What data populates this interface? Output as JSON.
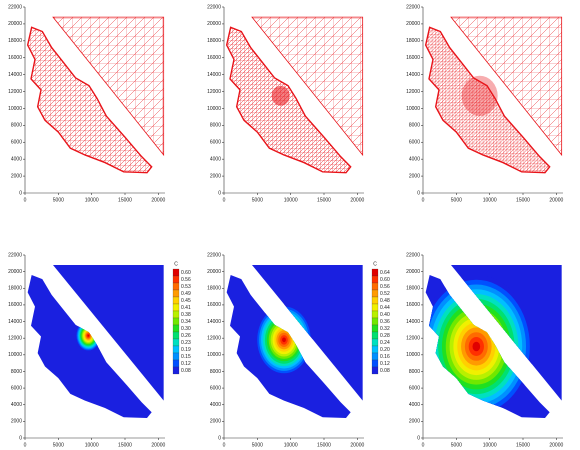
{
  "chart_data": [
    {
      "type": "mesh",
      "color": "#e8141a",
      "xlim": [
        0,
        21000
      ],
      "ylim": [
        0,
        22000
      ],
      "xticks": [
        0,
        5000,
        10000,
        15000,
        20000
      ],
      "yticks": [
        0,
        2000,
        4000,
        6000,
        8000,
        10000,
        12000,
        14000,
        16000,
        18000,
        20000,
        22000
      ]
    },
    {
      "type": "mesh",
      "color": "#e8141a",
      "xlim": [
        0,
        21000
      ],
      "ylim": [
        0,
        22000
      ],
      "xticks": [
        0,
        5000,
        10000,
        15000,
        20000
      ],
      "yticks": [
        0,
        2000,
        4000,
        6000,
        8000,
        10000,
        12000,
        14000,
        16000,
        18000,
        20000,
        22000
      ]
    },
    {
      "type": "mesh",
      "color": "#e8141a",
      "xlim": [
        0,
        21000
      ],
      "ylim": [
        0,
        22000
      ],
      "xticks": [
        0,
        5000,
        10000,
        15000,
        20000
      ],
      "yticks": [
        0,
        2000,
        4000,
        6000,
        8000,
        10000,
        12000,
        14000,
        16000,
        18000,
        20000,
        22000
      ]
    },
    {
      "type": "contour",
      "xlim": [
        0,
        21000
      ],
      "ylim": [
        0,
        22000
      ],
      "xticks": [
        0,
        5000,
        10000,
        15000,
        20000
      ],
      "yticks": [
        0,
        2000,
        4000,
        6000,
        8000,
        10000,
        12000,
        14000,
        16000,
        18000,
        20000,
        22000
      ],
      "colors": [
        "#e00000",
        "#ff3000",
        "#ff6a00",
        "#ff9a00",
        "#ffd000",
        "#f0f000",
        "#b8f000",
        "#70e800",
        "#20e020",
        "#00e070",
        "#00e0c0",
        "#00c0ff",
        "#0090ff",
        "#0050ff",
        "#1a20e0"
      ],
      "colorbar": {
        "title": "C",
        "levels": [
          {
            "value": 0.6,
            "label": "0.60"
          },
          0.56,
          0.53,
          0.49,
          0.45,
          0.41,
          0.38,
          0.34,
          {
            "value": 0.3,
            "label": "0.30"
          },
          0.26,
          0.23,
          0.19,
          0.15,
          0.12,
          0.08
        ]
      }
    },
    {
      "type": "contour",
      "xlim": [
        0,
        21000
      ],
      "ylim": [
        0,
        22000
      ],
      "xticks": [
        0,
        5000,
        10000,
        15000,
        20000
      ],
      "yticks": [
        0,
        2000,
        4000,
        6000,
        8000,
        10000,
        12000,
        14000,
        16000,
        18000,
        20000,
        22000
      ],
      "colors": [
        "#e00000",
        "#ff3000",
        "#ff6a00",
        "#ff9a00",
        "#ffd000",
        "#f0f000",
        "#b8f000",
        "#70e800",
        "#20e020",
        "#00e070",
        "#00e0c0",
        "#00c0ff",
        "#0090ff",
        "#0050ff",
        "#1a20e0"
      ],
      "colorbar": {
        "title": "C",
        "levels": [
          0.64,
          {
            "value": 0.6,
            "label": "0.60"
          },
          0.56,
          0.52,
          0.48,
          0.44,
          {
            "value": 0.4,
            "label": "0.40"
          },
          0.36,
          0.32,
          0.28,
          0.24,
          {
            "value": 0.2,
            "label": "0.20"
          },
          0.16,
          0.12,
          0.08
        ]
      }
    },
    {
      "type": "contour",
      "xlim": [
        0,
        21000
      ],
      "ylim": [
        0,
        22000
      ],
      "xticks": [
        0,
        5000,
        10000,
        15000,
        20000
      ],
      "yticks": [
        0,
        2000,
        4000,
        6000,
        8000,
        10000,
        12000,
        14000,
        16000,
        18000,
        20000,
        22000
      ],
      "colors": [
        "#e00000",
        "#ff3000",
        "#ff6a00",
        "#ff9a00",
        "#ffd000",
        "#f0f000",
        "#b8f000",
        "#70e800",
        "#20e020",
        "#00e070",
        "#00e0c0",
        "#00c0ff",
        "#0090ff",
        "#0050ff",
        "#1a20e0"
      ]
    }
  ]
}
